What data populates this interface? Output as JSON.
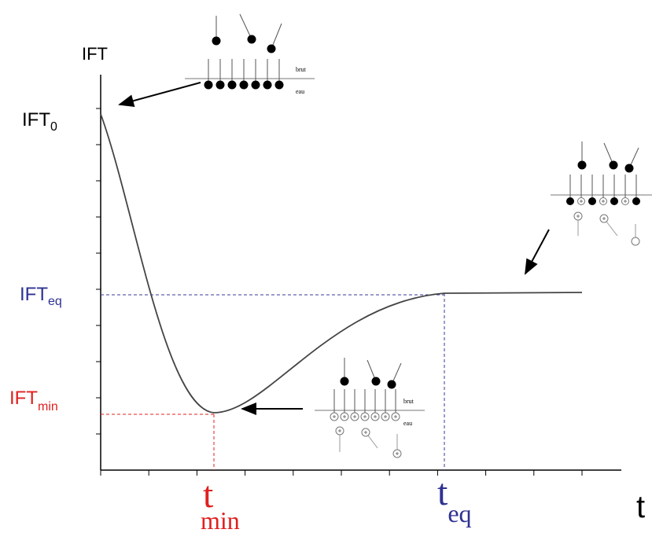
{
  "axis": {
    "y_label": "IFT",
    "x_label": "t"
  },
  "levels": [
    {
      "label": "IFT",
      "subscript": "0"
    },
    {
      "label": "IFT",
      "subscript": "eq"
    },
    {
      "label": "IFT",
      "subscript": "min"
    }
  ],
  "times": [
    {
      "label": "t",
      "subscript": "min"
    },
    {
      "label": "t",
      "subscript": "eq"
    }
  ],
  "insets": [
    {
      "top_label": "brut",
      "bottom_label": "eau"
    },
    {
      "top_label": "brut",
      "bottom_label": "eau"
    }
  ]
}
